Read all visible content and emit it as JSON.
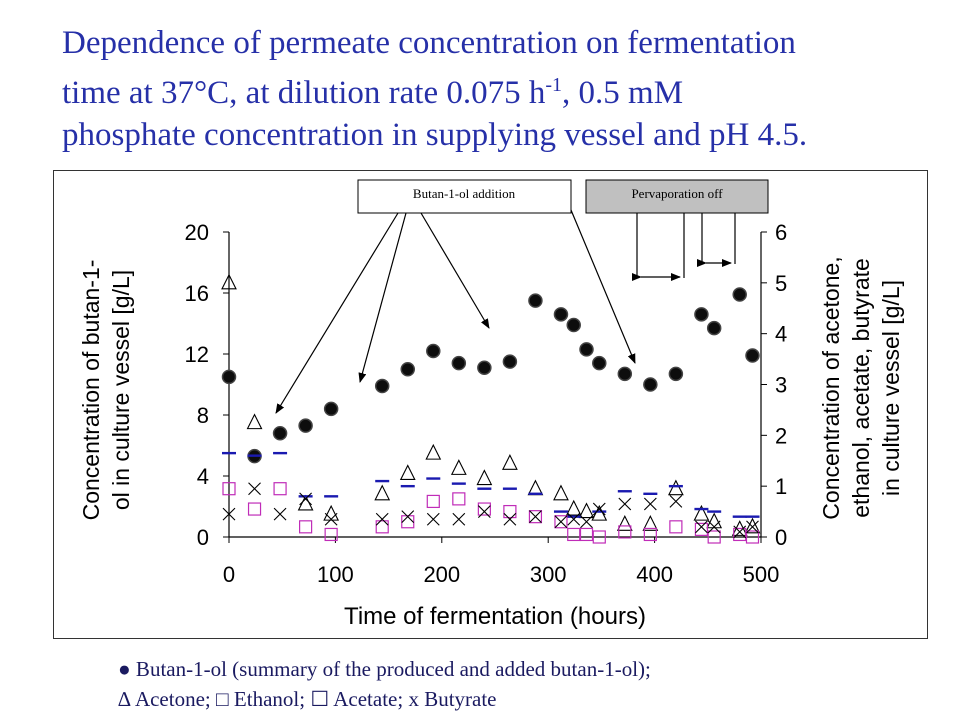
{
  "title_line1": "Dependence of permeate concentration on fermentation",
  "title_line2_pre": "time at 37°C, at dilution rate 0.075 h",
  "title_sup": "-1",
  "title_line2_post": ", 0.5 mM",
  "title_line3": "phosphate concentration in supplying vessel and pH 4.5.",
  "annotations": {
    "butanol_addition": "Butan-1-ol addition",
    "pervaporation_off": "Pervaporation off"
  },
  "legend": {
    "line1": "● Butan-1-ol (summary of the produced and added butan-1-ol);",
    "line2": "∆ Acetone; □ Ethanol; ☐ Acetate; x Butyrate"
  },
  "colors": {
    "title": "#2630a8",
    "butanol": "#0d0d0d",
    "acetone": "#000000",
    "ethanol": "#1a1ab0",
    "acetate": "#c02cb8",
    "butyrate": "#000000",
    "callout_fill": "#c0c0c0"
  },
  "chart_data": {
    "type": "scatter",
    "xlabel": "Time of fermentation (hours)",
    "ylabel_left_line1": "Concentration of butan-1-",
    "ylabel_left_line2": "ol in culture vessel [g/L]",
    "ylabel_right_line1": "Concentration of acetone,",
    "ylabel_right_line2": "ethanol, acetate, butyrate",
    "ylabel_right_line3": "in culture vessel [g/L]",
    "xlim": [
      0,
      500
    ],
    "ylim_left": [
      0,
      20
    ],
    "ylim_right": [
      0,
      6
    ],
    "x_ticks": [
      0,
      100,
      200,
      300,
      400,
      500
    ],
    "y_left_ticks": [
      0,
      4,
      8,
      12,
      16,
      20
    ],
    "y_right_ticks": [
      0,
      1,
      2,
      3,
      4,
      5,
      6
    ],
    "grid": false,
    "series": [
      {
        "name": "Butan-1-ol",
        "axis": "left",
        "marker": "circle",
        "points": [
          [
            0,
            10.5
          ],
          [
            24,
            5.3
          ],
          [
            48,
            6.8
          ],
          [
            72,
            7.3
          ],
          [
            96,
            8.4
          ],
          [
            144,
            9.9
          ],
          [
            168,
            11.0
          ],
          [
            192,
            12.2
          ],
          [
            216,
            11.4
          ],
          [
            240,
            11.1
          ],
          [
            264,
            11.5
          ],
          [
            288,
            15.5
          ],
          [
            312,
            14.6
          ],
          [
            324,
            13.9
          ],
          [
            336,
            12.3
          ],
          [
            348,
            11.4
          ],
          [
            372,
            10.7
          ],
          [
            396,
            10.0
          ],
          [
            420,
            10.7
          ],
          [
            444,
            14.6
          ],
          [
            456,
            13.7
          ],
          [
            480,
            15.9
          ],
          [
            492,
            11.9
          ]
        ]
      },
      {
        "name": "Acetone",
        "axis": "right",
        "marker": "triangle",
        "points": [
          [
            0,
            5.0
          ],
          [
            24,
            2.25
          ],
          [
            72,
            0.65
          ],
          [
            96,
            0.45
          ],
          [
            144,
            0.85
          ],
          [
            168,
            1.25
          ],
          [
            192,
            1.65
          ],
          [
            216,
            1.35
          ],
          [
            240,
            1.15
          ],
          [
            264,
            1.45
          ],
          [
            288,
            0.95
          ],
          [
            312,
            0.85
          ],
          [
            324,
            0.55
          ],
          [
            336,
            0.5
          ],
          [
            348,
            0.45
          ],
          [
            372,
            0.25
          ],
          [
            396,
            0.25
          ],
          [
            420,
            0.95
          ],
          [
            444,
            0.45
          ],
          [
            456,
            0.3
          ],
          [
            480,
            0.15
          ],
          [
            492,
            0.2
          ]
        ]
      },
      {
        "name": "Ethanol",
        "axis": "right",
        "marker": "dash",
        "points": [
          [
            0,
            1.65
          ],
          [
            24,
            1.6
          ],
          [
            48,
            1.65
          ],
          [
            72,
            0.8
          ],
          [
            96,
            0.8
          ],
          [
            144,
            1.1
          ],
          [
            168,
            1.0
          ],
          [
            192,
            1.15
          ],
          [
            216,
            1.05
          ],
          [
            240,
            0.95
          ],
          [
            264,
            0.95
          ],
          [
            288,
            0.85
          ],
          [
            312,
            0.5
          ],
          [
            324,
            0.4
          ],
          [
            348,
            0.5
          ],
          [
            372,
            0.9
          ],
          [
            396,
            0.85
          ],
          [
            420,
            1.0
          ],
          [
            444,
            0.55
          ],
          [
            456,
            0.5
          ],
          [
            480,
            0.4
          ],
          [
            492,
            0.4
          ]
        ]
      },
      {
        "name": "Acetate",
        "axis": "right",
        "marker": "square",
        "points": [
          [
            0,
            0.95
          ],
          [
            24,
            0.55
          ],
          [
            48,
            0.95
          ],
          [
            72,
            0.2
          ],
          [
            96,
            0.05
          ],
          [
            144,
            0.2
          ],
          [
            168,
            0.3
          ],
          [
            192,
            0.7
          ],
          [
            216,
            0.75
          ],
          [
            240,
            0.55
          ],
          [
            264,
            0.5
          ],
          [
            288,
            0.4
          ],
          [
            312,
            0.3
          ],
          [
            324,
            0.05
          ],
          [
            336,
            0.05
          ],
          [
            348,
            0.0
          ],
          [
            372,
            0.1
          ],
          [
            396,
            0.05
          ],
          [
            420,
            0.2
          ],
          [
            444,
            0.15
          ],
          [
            456,
            0.0
          ],
          [
            480,
            0.05
          ],
          [
            492,
            0.0
          ]
        ]
      },
      {
        "name": "Butyrate",
        "axis": "right",
        "marker": "x",
        "points": [
          [
            0,
            0.45
          ],
          [
            24,
            0.95
          ],
          [
            48,
            0.45
          ],
          [
            72,
            0.75
          ],
          [
            96,
            0.35
          ],
          [
            144,
            0.35
          ],
          [
            168,
            0.4
          ],
          [
            192,
            0.35
          ],
          [
            216,
            0.35
          ],
          [
            240,
            0.5
          ],
          [
            264,
            0.35
          ],
          [
            288,
            0.4
          ],
          [
            312,
            0.3
          ],
          [
            324,
            0.35
          ],
          [
            336,
            0.3
          ],
          [
            348,
            0.55
          ],
          [
            372,
            0.65
          ],
          [
            396,
            0.65
          ],
          [
            420,
            0.7
          ],
          [
            444,
            0.2
          ],
          [
            456,
            0.2
          ],
          [
            480,
            0.1
          ],
          [
            492,
            0.2
          ]
        ]
      }
    ]
  }
}
